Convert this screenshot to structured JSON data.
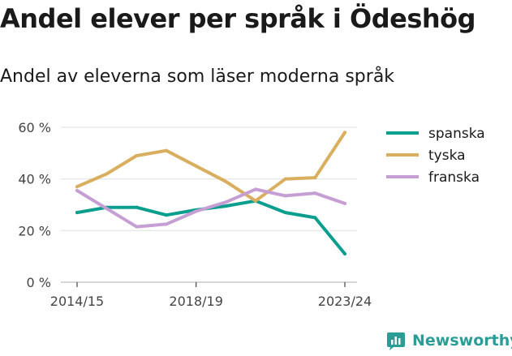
{
  "title": "Andel elever per språk i Ödeshög",
  "subtitle": "Andel av eleverna som läser moderna språk",
  "brand": {
    "name": "Newsworthy",
    "icon": "bar-chart-logo-icon",
    "color": "#2a9d96"
  },
  "chart_data": {
    "type": "line",
    "x": [
      "2014/15",
      "2015/16",
      "2016/17",
      "2017/18",
      "2018/19",
      "2019/20",
      "2020/21",
      "2021/22",
      "2022/23",
      "2023/24"
    ],
    "x_tick_labels": [
      {
        "index": 0,
        "label": "2014/15"
      },
      {
        "index": 4,
        "label": "2018/19"
      },
      {
        "index": 9,
        "label": "2023/24"
      }
    ],
    "ylim": [
      0,
      60
    ],
    "y_ticks": [
      {
        "value": 0,
        "label": "0 %"
      },
      {
        "value": 20,
        "label": "20 %"
      },
      {
        "value": 40,
        "label": "40 %"
      },
      {
        "value": 60,
        "label": "60 %"
      }
    ],
    "grid": true,
    "legend_position": "right",
    "series": [
      {
        "name": "spanska",
        "color": "#0a9e8f",
        "values": [
          27,
          29,
          29,
          26,
          28,
          29.5,
          31.5,
          27,
          25,
          11
        ]
      },
      {
        "name": "tyska",
        "color": "#d9ae5f",
        "values": [
          37,
          42,
          49,
          51,
          45,
          39,
          31.5,
          40,
          40.5,
          58
        ]
      },
      {
        "name": "franska",
        "color": "#c59fd4",
        "values": [
          35.5,
          28.5,
          21.5,
          22.5,
          27.5,
          31,
          36,
          33.5,
          34.5,
          30.5
        ]
      }
    ]
  }
}
